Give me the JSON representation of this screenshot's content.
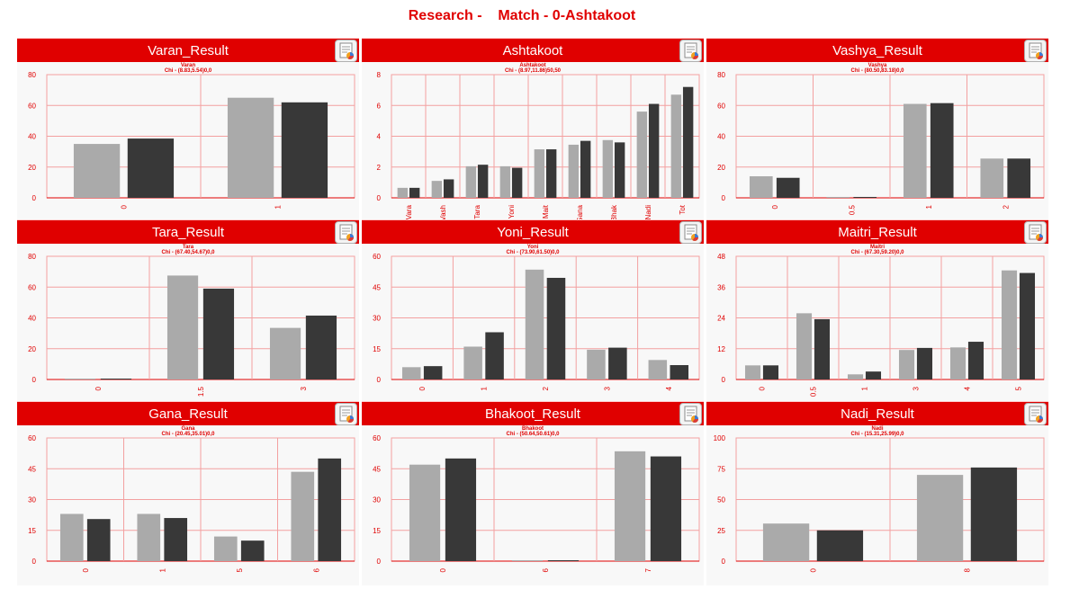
{
  "page": {
    "title": "Research -    Match - 0-Ashtakoot"
  },
  "colors": {
    "brand_red": "#e00000",
    "series_a": "#aaaaaa",
    "series_b": "#383838",
    "grid": "#f3a0a0",
    "plot_bg": "#f8f8f8"
  },
  "panels": [
    {
      "header": "Varan_Result",
      "icon": "spreadsheet-export-icon"
    },
    {
      "header": "Ashtakoot",
      "icon": "spreadsheet-export-icon"
    },
    {
      "header": "Vashya_Result",
      "icon": "spreadsheet-export-icon"
    },
    {
      "header": "Tara_Result",
      "icon": "spreadsheet-export-icon"
    },
    {
      "header": "Yoni_Result",
      "icon": "spreadsheet-export-icon"
    },
    {
      "header": "Maitri_Result",
      "icon": "spreadsheet-export-icon"
    },
    {
      "header": "Gana_Result",
      "icon": "spreadsheet-export-icon"
    },
    {
      "header": "Bhakoot_Result",
      "icon": "spreadsheet-export-icon"
    },
    {
      "header": "Nadi_Result",
      "icon": "spreadsheet-export-icon"
    }
  ],
  "chart_data": [
    {
      "type": "bar",
      "title": "Varan",
      "subtitle": "Chi - (8.83,5.54)0,0",
      "categories": [
        "0",
        "1"
      ],
      "ylim": [
        0,
        80
      ],
      "yticks": [
        0,
        20,
        40,
        60,
        80
      ],
      "grid": true,
      "legend": "none",
      "series": [
        {
          "values": [
            35,
            65
          ]
        },
        {
          "values": [
            38.5,
            62
          ]
        }
      ]
    },
    {
      "type": "bar",
      "title": "Ashtakoot",
      "subtitle": "Chi - (8.97,11.86)50,50",
      "categories": [
        "Vara",
        "Vash",
        "Tara",
        "Yoni",
        "Mait",
        "Gana",
        "Bhak",
        "Nadi",
        "Tot"
      ],
      "ylim": [
        0,
        8
      ],
      "yticks": [
        0,
        2,
        4,
        6,
        8
      ],
      "grid": true,
      "legend": "none",
      "series": [
        {
          "values": [
            0.65,
            1.1,
            2.05,
            2.05,
            3.15,
            3.45,
            3.75,
            5.6,
            6.7
          ]
        },
        {
          "values": [
            0.65,
            1.2,
            2.15,
            1.95,
            3.15,
            3.7,
            3.6,
            6.1,
            7.2
          ]
        }
      ]
    },
    {
      "type": "bar",
      "title": "Vashya",
      "subtitle": "Chi - (80.50,83.18)0,0",
      "categories": [
        "0",
        "0.5",
        "1",
        "2"
      ],
      "ylim": [
        0,
        80
      ],
      "yticks": [
        0,
        20,
        40,
        60,
        80
      ],
      "grid": true,
      "legend": "none",
      "series": [
        {
          "values": [
            14,
            0,
            61,
            25.5
          ]
        },
        {
          "values": [
            13,
            0,
            61.5,
            25.5
          ]
        }
      ]
    },
    {
      "type": "bar",
      "title": "Tara",
      "subtitle": "Chi - (67.40,54.67)0,0",
      "categories": [
        "0",
        "1.5",
        "3"
      ],
      "ylim": [
        0,
        80
      ],
      "yticks": [
        0,
        20,
        40,
        60,
        80
      ],
      "grid": true,
      "legend": "none",
      "series": [
        {
          "values": [
            0,
            67.5,
            33.5
          ]
        },
        {
          "values": [
            0,
            59,
            41.5
          ]
        }
      ]
    },
    {
      "type": "bar",
      "title": "Yoni",
      "subtitle": "Chi - (73.90,61.50)0,0",
      "categories": [
        "0",
        "1",
        "2",
        "3",
        "4"
      ],
      "ylim": [
        0,
        60
      ],
      "yticks": [
        0,
        15,
        30,
        45,
        60
      ],
      "grid": true,
      "legend": "none",
      "series": [
        {
          "values": [
            6,
            16,
            53.5,
            14.5,
            9.5
          ]
        },
        {
          "values": [
            6.5,
            23,
            49.5,
            15.5,
            7
          ]
        }
      ]
    },
    {
      "type": "bar",
      "title": "Maitri",
      "subtitle": "Chi - (67.30,59.20)0,0",
      "categories": [
        "0",
        "0.5",
        "1",
        "3",
        "4",
        "5"
      ],
      "ylim": [
        0,
        48
      ],
      "yticks": [
        0,
        12,
        24,
        36,
        48
      ],
      "grid": true,
      "legend": "none",
      "series": [
        {
          "values": [
            5.5,
            25.8,
            2,
            11.5,
            12.5,
            42.5
          ]
        },
        {
          "values": [
            5.5,
            23.5,
            3.1,
            12.3,
            14.7,
            41.5
          ]
        }
      ]
    },
    {
      "type": "bar",
      "title": "Gana",
      "subtitle": "Chi - (20.45,35.01)0,0",
      "categories": [
        "0",
        "1",
        "5",
        "6"
      ],
      "ylim": [
        0,
        60
      ],
      "yticks": [
        0,
        15,
        30,
        45,
        60
      ],
      "grid": true,
      "legend": "none",
      "series": [
        {
          "values": [
            23,
            23,
            12,
            43.5
          ]
        },
        {
          "values": [
            20.5,
            21,
            10,
            50
          ]
        }
      ]
    },
    {
      "type": "bar",
      "title": "Bhakoot",
      "subtitle": "Chi - (50.64,50.61)0,0",
      "categories": [
        "0",
        "6",
        "7"
      ],
      "ylim": [
        0,
        60
      ],
      "yticks": [
        0,
        15,
        30,
        45,
        60
      ],
      "grid": true,
      "legend": "none",
      "series": [
        {
          "values": [
            47,
            0,
            53.5
          ]
        },
        {
          "values": [
            50,
            0,
            51
          ]
        }
      ]
    },
    {
      "type": "bar",
      "title": "Nadi",
      "subtitle": "Chi - (15.31,25.99)0,0",
      "categories": [
        "0",
        "8"
      ],
      "ylim": [
        0,
        100
      ],
      "yticks": [
        0,
        25,
        50,
        75,
        100
      ],
      "grid": true,
      "legend": "none",
      "series": [
        {
          "values": [
            30.5,
            70
          ]
        },
        {
          "values": [
            25,
            76
          ]
        }
      ]
    }
  ]
}
